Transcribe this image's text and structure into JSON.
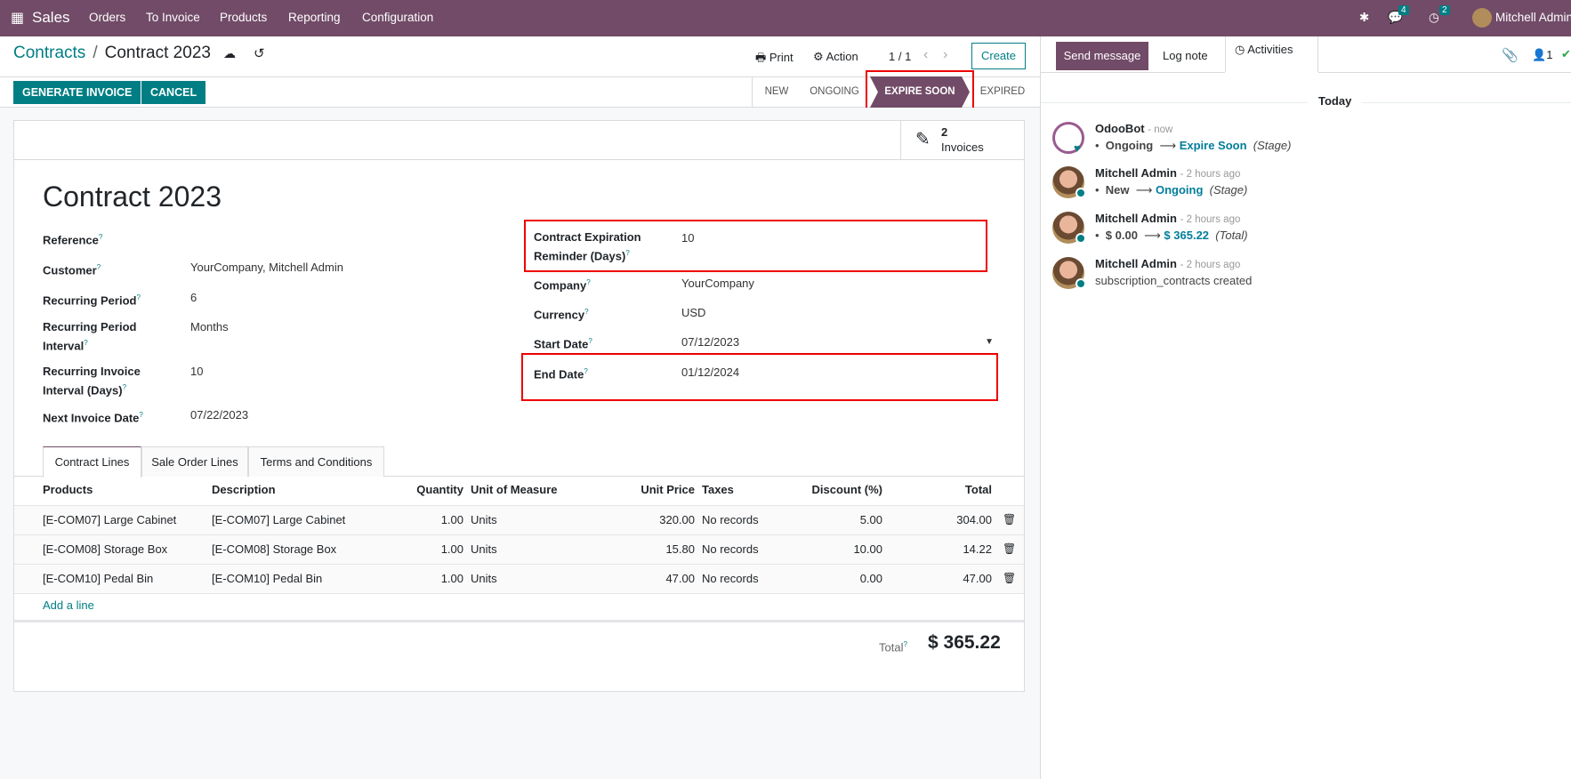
{
  "navbar": {
    "app": "Sales",
    "menu": [
      "Orders",
      "To Invoice",
      "Products",
      "Reporting",
      "Configuration"
    ],
    "messages_count": "4",
    "activities_count": "2",
    "user": "Mitchell Admin"
  },
  "breadcrumb": {
    "parent": "Contracts",
    "current": "Contract 2023"
  },
  "toolbar": {
    "print": "Print",
    "action": "Action",
    "pager": "1 / 1",
    "create": "Create",
    "generate_invoice": "GENERATE INVOICE",
    "cancel": "CANCEL"
  },
  "stages": [
    {
      "label": "NEW",
      "active": false
    },
    {
      "label": "ONGOING",
      "active": false
    },
    {
      "label": "EXPIRE SOON",
      "active": true
    },
    {
      "label": "EXPIRED",
      "active": false
    }
  ],
  "smart_button": {
    "count": "2",
    "label": "Invoices"
  },
  "form": {
    "title": "Contract 2023",
    "left": [
      {
        "label": "Reference",
        "value": ""
      },
      {
        "label": "Customer",
        "value": "YourCompany, Mitchell Admin"
      },
      {
        "label": "Recurring Period",
        "value": "6"
      },
      {
        "label": "Recurring Period Interval",
        "value": "Months"
      },
      {
        "label": "Recurring Invoice Interval (Days)",
        "value": "10"
      },
      {
        "label": "Next Invoice Date",
        "value": "07/22/2023"
      }
    ],
    "right": [
      {
        "label": "Contract Expiration Reminder (Days)",
        "value": "10"
      },
      {
        "label": "Company",
        "value": "YourCompany"
      },
      {
        "label": "Currency",
        "value": "USD"
      },
      {
        "label": "Start Date",
        "value": "07/12/2023"
      },
      {
        "label": "End Date",
        "value": "01/12/2024"
      }
    ]
  },
  "tabs": [
    "Contract Lines",
    "Sale Order Lines",
    "Terms and Conditions"
  ],
  "table": {
    "headers": [
      "Products",
      "Description",
      "Quantity",
      "Unit of Measure",
      "Unit Price",
      "Taxes",
      "Discount (%)",
      "Total"
    ],
    "rows": [
      [
        "[E-COM07] Large Cabinet",
        "[E-COM07] Large Cabinet",
        "1.00",
        "Units",
        "320.00",
        "No records",
        "5.00",
        "304.00"
      ],
      [
        "[E-COM08] Storage Box",
        "[E-COM08] Storage Box",
        "1.00",
        "Units",
        "15.80",
        "No records",
        "10.00",
        "14.22"
      ],
      [
        "[E-COM10] Pedal Bin",
        "[E-COM10] Pedal Bin",
        "1.00",
        "Units",
        "47.00",
        "No records",
        "0.00",
        "47.00"
      ]
    ],
    "add_line": "Add a line",
    "total_label": "Total",
    "total_value": "$ 365.22"
  },
  "chatter": {
    "send_message": "Send message",
    "log_note": "Log note",
    "activities": "Activities",
    "followers": "1",
    "date_sep": "Today",
    "messages": [
      {
        "author": "OdooBot",
        "time": "- now",
        "from": "Ongoing",
        "to": "Expire Soon",
        "field": "(Stage)"
      },
      {
        "author": "Mitchell Admin",
        "time": "- 2 hours ago",
        "from": "New",
        "to": "Ongoing",
        "field": "(Stage)"
      },
      {
        "author": "Mitchell Admin",
        "time": "- 2 hours ago",
        "from": "$ 0.00",
        "to": "$ 365.22",
        "field": "(Total)"
      },
      {
        "author": "Mitchell Admin",
        "time": "- 2 hours ago",
        "text": "subscription_contracts created"
      }
    ]
  },
  "colors": {
    "brand": "#714B67",
    "primary": "#017e84",
    "highlight": "#e00000"
  }
}
